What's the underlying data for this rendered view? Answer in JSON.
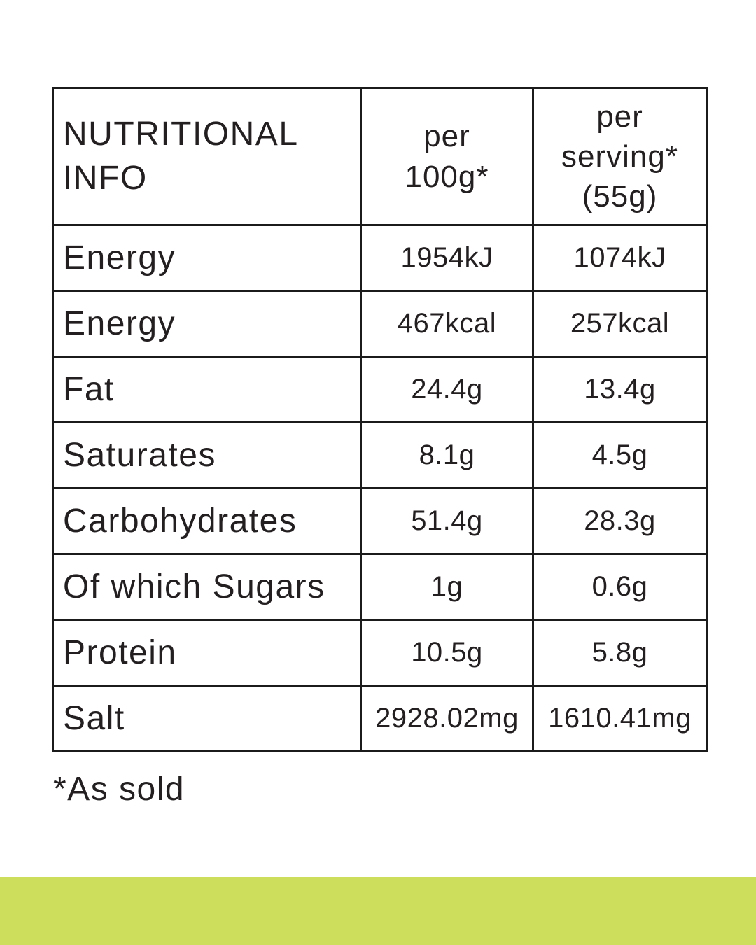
{
  "table": {
    "title": "NUTRITIONAL INFO",
    "columns": {
      "per100": "per\n100g*",
      "serving": "per\nserving*\n(55g)"
    },
    "rows": [
      {
        "label": "Energy",
        "per100": "1954kJ",
        "serving": "1074kJ"
      },
      {
        "label": "Energy",
        "per100": "467kcal",
        "serving": "257kcal"
      },
      {
        "label": "Fat",
        "per100": "24.4g",
        "serving": "13.4g"
      },
      {
        "label": "Saturates",
        "per100": "8.1g",
        "serving": "4.5g"
      },
      {
        "label": "Carbohydrates",
        "per100": "51.4g",
        "serving": "28.3g"
      },
      {
        "label": "Of which Sugars",
        "per100": "1g",
        "serving": "0.6g"
      },
      {
        "label": "Protein",
        "per100": "10.5g",
        "serving": "5.8g"
      },
      {
        "label": "Salt",
        "per100": "2928.02mg",
        "serving": "1610.41mg"
      }
    ]
  },
  "footnote": "*As sold",
  "colors": {
    "accent_bar": "#cddd5c",
    "text": "#231f20",
    "border": "#1b1b1b"
  }
}
